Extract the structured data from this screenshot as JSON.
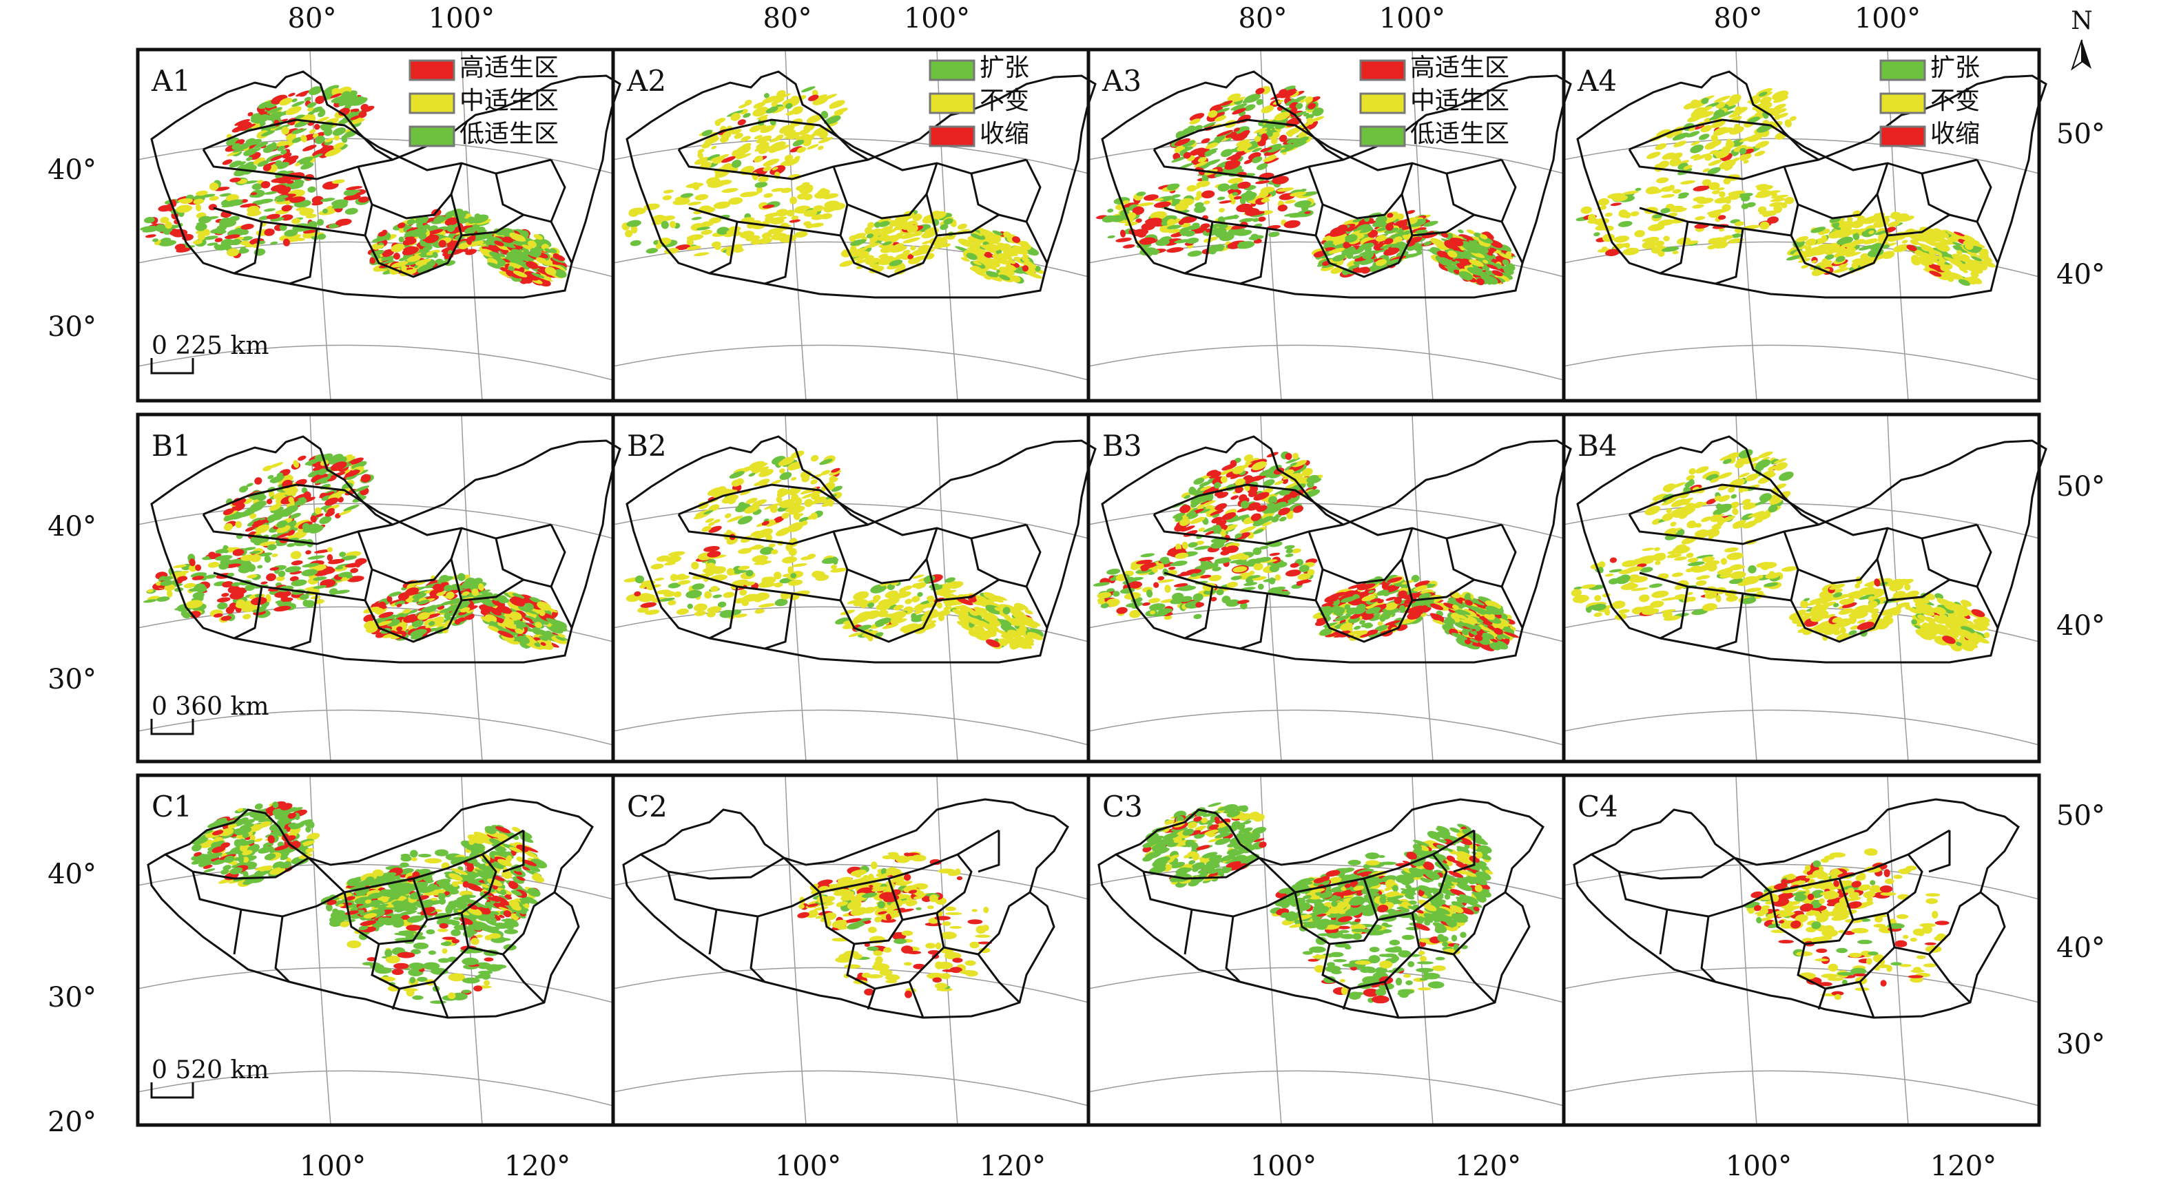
{
  "top_longitudes": [
    "80°",
    "100°"
  ],
  "bottom_longitudes": [
    "100°",
    "120°"
  ],
  "north_label": "N",
  "colors": {
    "red": "#e8231f",
    "yellow": "#e6e22a",
    "green": "#6cc13f",
    "border": "#111111",
    "graticule": "#9a9a9a"
  },
  "legends": {
    "suitability": [
      "高适生区",
      "中适生区",
      "低适生区"
    ],
    "change": [
      "扩张",
      "不变",
      "收缩"
    ]
  },
  "rows": [
    {
      "id": "A",
      "panels": [
        "A1",
        "A2",
        "A3",
        "A4"
      ],
      "left_lats": [
        "40°",
        "30°"
      ],
      "right_lats": [
        "50°",
        "40°"
      ],
      "scale": "0  225 km"
    },
    {
      "id": "B",
      "panels": [
        "B1",
        "B2",
        "B3",
        "B4"
      ],
      "left_lats": [
        "40°",
        "30°"
      ],
      "right_lats": [
        "50°",
        "40°"
      ],
      "scale": "0  360 km"
    },
    {
      "id": "C",
      "panels": [
        "C1",
        "C2",
        "C3",
        "C4"
      ],
      "left_lats": [
        "40°",
        "30°",
        "20°"
      ],
      "right_lats": [
        "50°",
        "40°",
        "30°"
      ],
      "scale": "0  520 km"
    }
  ]
}
